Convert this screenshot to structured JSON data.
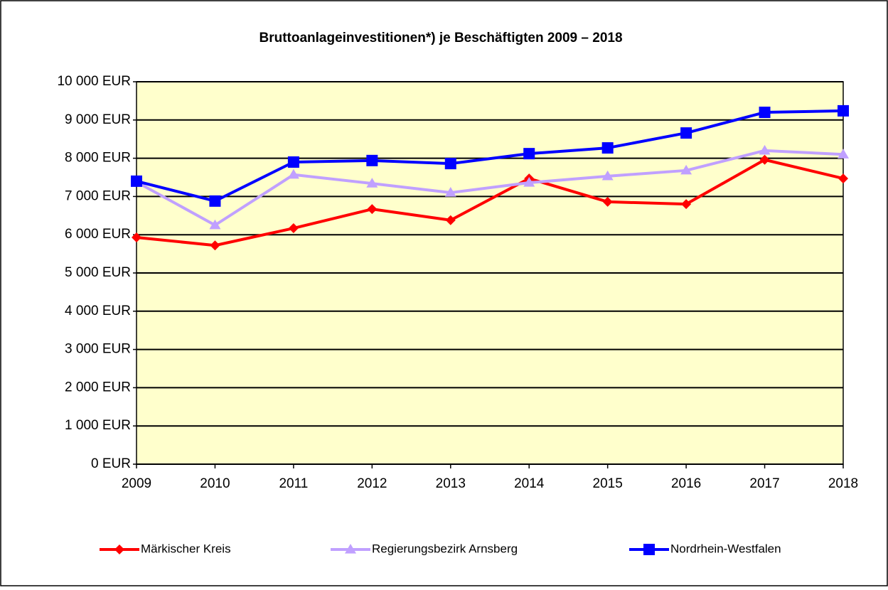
{
  "chart_data": {
    "type": "line",
    "title": "Bruttoanlageinvestitionen*) je Beschäftigten 2009 – 2018",
    "categories": [
      "2009",
      "2010",
      "2011",
      "2012",
      "2013",
      "2014",
      "2015",
      "2016",
      "2017",
      "2018"
    ],
    "series": [
      {
        "name": "Märkischer Kreis",
        "color": "#ff0000",
        "marker": "diamond",
        "values": [
          5930,
          5720,
          6170,
          6670,
          6380,
          7470,
          6860,
          6800,
          7960,
          7470
        ]
      },
      {
        "name": "Regierungsbezirk Arnsberg",
        "color": "#c0a0ff",
        "marker": "triangle",
        "values": [
          7380,
          6250,
          7570,
          7340,
          7100,
          7360,
          7530,
          7680,
          8200,
          8100
        ]
      },
      {
        "name": "Nordrhein-Westfalen",
        "color": "#0000ff",
        "marker": "square",
        "values": [
          7400,
          6880,
          7900,
          7940,
          7860,
          8120,
          8270,
          8660,
          9200,
          9240
        ]
      }
    ],
    "ylim": [
      0,
      10000
    ],
    "yticks": [
      {
        "value": 0,
        "label": "0 EUR"
      },
      {
        "value": 1000,
        "label": "1 000 EUR"
      },
      {
        "value": 2000,
        "label": "2 000 EUR"
      },
      {
        "value": 3000,
        "label": "3 000 EUR"
      },
      {
        "value": 4000,
        "label": "4 000 EUR"
      },
      {
        "value": 5000,
        "label": "5 000 EUR"
      },
      {
        "value": 6000,
        "label": "6 000 EUR"
      },
      {
        "value": 7000,
        "label": "7 000 EUR"
      },
      {
        "value": 8000,
        "label": "8 000 EUR"
      },
      {
        "value": 9000,
        "label": "9 000 EUR"
      },
      {
        "value": 10000,
        "label": "10 000 EUR"
      }
    ],
    "grid": true,
    "legend": "bottom",
    "plot_background": "#ffffcc"
  }
}
